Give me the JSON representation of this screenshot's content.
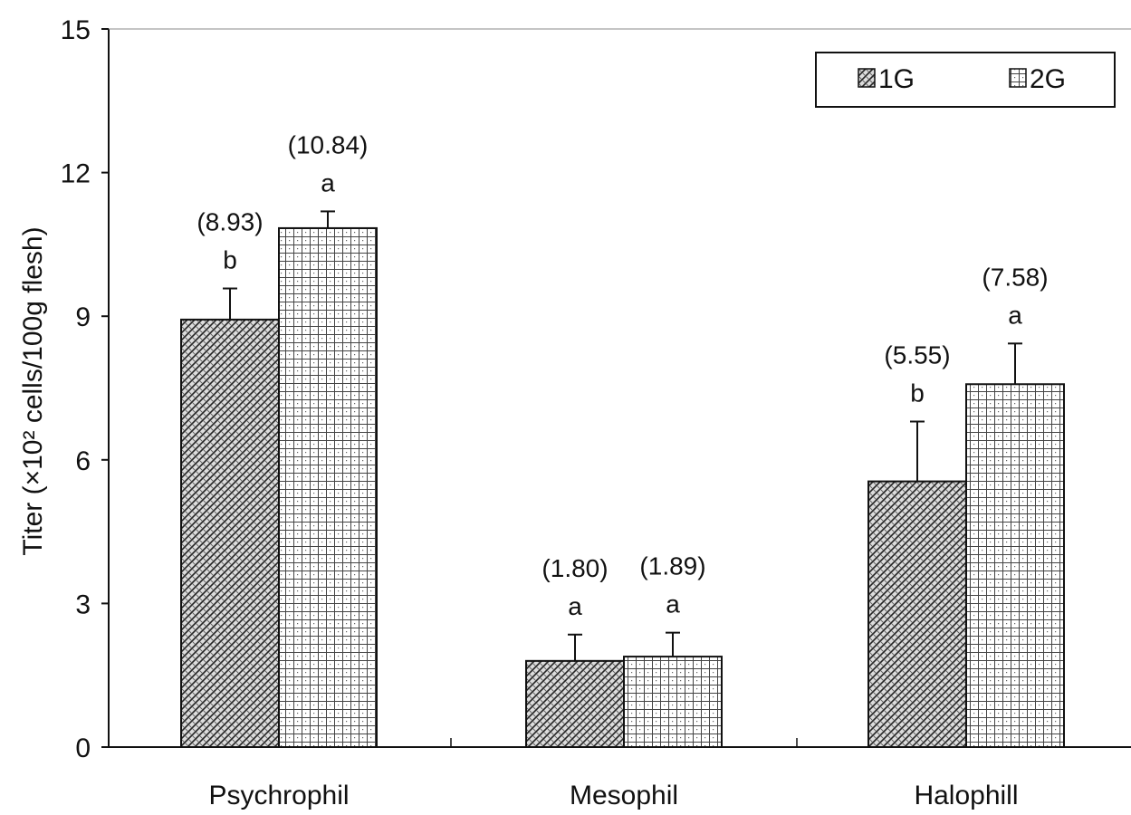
{
  "chart_data": {
    "type": "bar",
    "categories": [
      "Psychrophil",
      "Mesophil",
      "Halophill"
    ],
    "series": [
      {
        "name": "1G",
        "values": [
          8.93,
          1.8,
          5.55
        ],
        "errors": [
          0.65,
          0.55,
          1.25
        ],
        "letters": [
          "b",
          "a",
          "b"
        ],
        "value_labels": [
          "(8.93)",
          "(1.80)",
          "(5.55)"
        ]
      },
      {
        "name": "2G",
        "values": [
          10.84,
          1.89,
          7.58
        ],
        "errors": [
          0.35,
          0.5,
          0.85
        ],
        "letters": [
          "a",
          "a",
          "a"
        ],
        "value_labels": [
          "(10.84)",
          "(1.89)",
          "(7.58)"
        ]
      }
    ],
    "ylabel": "Titer (×10² cells/100g flesh)",
    "xlabel": "",
    "ylim": [
      0,
      15
    ],
    "yticks": [
      "0",
      "3",
      "6",
      "9",
      "12",
      "15"
    ],
    "legend_position": "top-right",
    "grid": false
  }
}
